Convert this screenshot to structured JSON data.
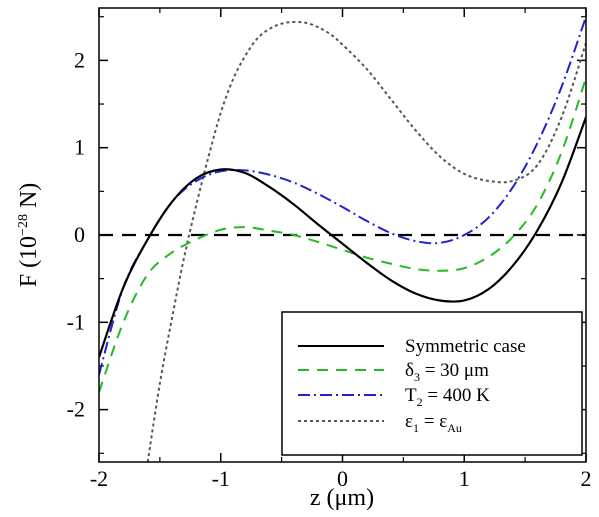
{
  "chart_data": {
    "type": "line",
    "xlabel_main": "z (",
    "xlabel_unit": "μm",
    "xlabel_close": ")",
    "ylabel_main": "F (10",
    "ylabel_exp": "−28",
    "ylabel_close": " N)",
    "xlim": [
      -2,
      2
    ],
    "ylim": [
      -2.6,
      2.6
    ],
    "xticks": [
      -2,
      -1,
      0,
      1,
      2
    ],
    "yticks": [
      -2,
      -1,
      0,
      1,
      2
    ],
    "xtick_labels": [
      "-2",
      "-1",
      "0",
      "1",
      "2"
    ],
    "ytick_labels": [
      "-2",
      "-1",
      "0",
      "1",
      "2"
    ],
    "reference_line": {
      "y": 0,
      "style": "dashed",
      "color": "#000000"
    },
    "legend_position": "bottom-right",
    "series": [
      {
        "key": "symmetric",
        "legend": {
          "main": "Symmetric case"
        },
        "color": "#000000",
        "dash": "",
        "x": [
          -2.0,
          -1.8,
          -1.6,
          -1.4,
          -1.2,
          -1.0,
          -0.8,
          -0.6,
          -0.4,
          -0.2,
          0.0,
          0.2,
          0.4,
          0.6,
          0.8,
          1.0,
          1.2,
          1.4,
          1.6,
          1.8,
          2.0
        ],
        "y": [
          -1.4,
          -0.6,
          -0.05,
          0.38,
          0.65,
          0.75,
          0.71,
          0.55,
          0.35,
          0.12,
          -0.1,
          -0.32,
          -0.52,
          -0.67,
          -0.75,
          -0.75,
          -0.62,
          -0.35,
          0.05,
          0.6,
          1.35
        ]
      },
      {
        "key": "delta3",
        "legend": {
          "sym": "δ",
          "sub": "3",
          "rest": " = 30 μm"
        },
        "color": "#22bb22",
        "dash": "11,8",
        "x": [
          -2.0,
          -1.8,
          -1.6,
          -1.4,
          -1.2,
          -1.0,
          -0.8,
          -0.6,
          -0.4,
          -0.2,
          0.0,
          0.2,
          0.4,
          0.6,
          0.8,
          1.0,
          1.2,
          1.4,
          1.6,
          1.8,
          2.0
        ],
        "y": [
          -1.8,
          -1.0,
          -0.45,
          -0.2,
          -0.05,
          0.06,
          0.09,
          0.05,
          0.0,
          -0.08,
          -0.17,
          -0.26,
          -0.33,
          -0.39,
          -0.41,
          -0.38,
          -0.25,
          -0.02,
          0.35,
          0.95,
          1.8
        ]
      },
      {
        "key": "t2",
        "legend": {
          "sym": "T",
          "sub": "2",
          "rest": " = 400 K"
        },
        "color": "#2222cc",
        "dash": "12,4,2,4",
        "x": [
          -2.0,
          -1.8,
          -1.6,
          -1.4,
          -1.2,
          -1.0,
          -0.8,
          -0.6,
          -0.4,
          -0.2,
          0.0,
          0.2,
          0.4,
          0.6,
          0.8,
          1.0,
          1.2,
          1.4,
          1.6,
          1.8,
          2.0
        ],
        "y": [
          -1.6,
          -0.6,
          -0.05,
          0.38,
          0.62,
          0.73,
          0.74,
          0.69,
          0.6,
          0.47,
          0.32,
          0.16,
          0.02,
          -0.07,
          -0.09,
          0.0,
          0.2,
          0.55,
          1.05,
          1.7,
          2.5
        ]
      },
      {
        "key": "eps1",
        "legend": {
          "sym": "ε",
          "sub": "1",
          "rest": " = ε",
          "sub2": "Au"
        },
        "color": "#555555",
        "dash": "3,3",
        "x": [
          -1.6,
          -1.5,
          -1.4,
          -1.3,
          -1.2,
          -1.1,
          -1.0,
          -0.9,
          -0.8,
          -0.7,
          -0.6,
          -0.5,
          -0.4,
          -0.3,
          -0.2,
          -0.1,
          0.0,
          0.2,
          0.4,
          0.6,
          0.8,
          1.0,
          1.2,
          1.4,
          1.6,
          1.8,
          2.0
        ],
        "y": [
          -2.6,
          -1.7,
          -0.95,
          -0.25,
          0.35,
          0.9,
          1.4,
          1.78,
          2.05,
          2.25,
          2.36,
          2.42,
          2.44,
          2.43,
          2.38,
          2.3,
          2.18,
          1.9,
          1.55,
          1.2,
          0.9,
          0.7,
          0.62,
          0.62,
          0.8,
          1.35,
          2.2
        ]
      }
    ]
  }
}
